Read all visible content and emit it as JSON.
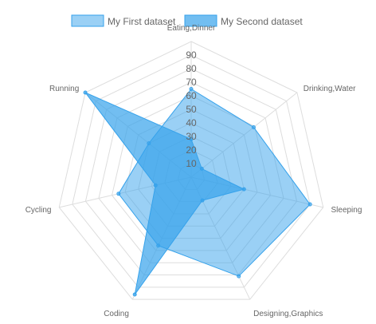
{
  "chart_data": {
    "type": "radar",
    "categories": [
      "Eating,Dinner",
      "Drinking,Water",
      "Sleeping",
      "Designing,Graphics",
      "Coding",
      "Cycling",
      "Running"
    ],
    "series": [
      {
        "name": "My First dataset",
        "values": [
          65,
          59,
          90,
          81,
          56,
          55,
          40
        ],
        "fill_color": "rgba(54,162,235,0.5)",
        "stroke_color": "#36a2eb"
      },
      {
        "name": "My Second dataset",
        "values": [
          28,
          10,
          40,
          19,
          96,
          27,
          100
        ],
        "fill_color": "rgba(54,162,235,0.7)",
        "stroke_color": "#36a2eb"
      }
    ],
    "ticks": [
      "10",
      "20",
      "30",
      "40",
      "50",
      "60",
      "70",
      "80",
      "90"
    ],
    "r_range": [
      0,
      100
    ],
    "legend_position": "top",
    "grid": true
  }
}
